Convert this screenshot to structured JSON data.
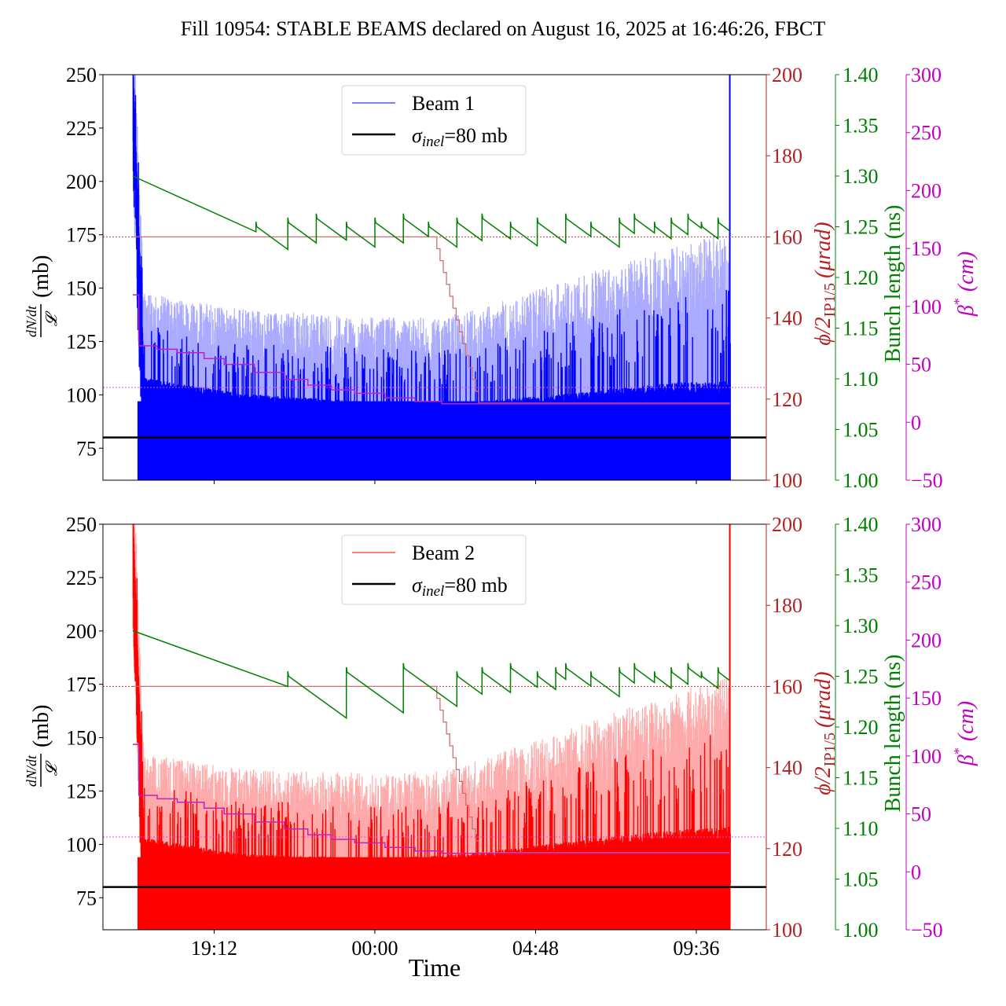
{
  "chart_data": {
    "title": "Fill 10954: STABLE BEAMS declared on August 16, 2025 at 16:46:26, FBCT",
    "type": "line",
    "x_unit": "hours relative to 00:00 (Aug 17)",
    "xlabel": "Time",
    "xticks": [
      {
        "value": -4.8,
        "label": "19:12"
      },
      {
        "value": 0,
        "label": "00:00"
      },
      {
        "value": 4.8,
        "label": "04:48"
      },
      {
        "value": 9.6,
        "label": "09:36"
      }
    ],
    "xlim": [
      -8.12,
      11.69
    ],
    "axes": {
      "left": {
        "label_num": "dN/dt",
        "label_den": "𝓛",
        "label_unit": "(mb)",
        "ylim": [
          60,
          250
        ],
        "ticks": [
          "75",
          "100",
          "125",
          "150",
          "175",
          "200",
          "225",
          "250"
        ]
      },
      "phi": {
        "label_main": "ϕ/2",
        "label_sub": "IP1/5",
        "label_unit": "(μrad)",
        "ylim": [
          100,
          200
        ],
        "ticks": [
          "100",
          "120",
          "140",
          "160",
          "180",
          "200"
        ],
        "color": "#b22222"
      },
      "bunch": {
        "label": "Bunch length (ns)",
        "ylim": [
          1.0,
          1.4
        ],
        "ticks": [
          "1.00",
          "1.05",
          "1.10",
          "1.15",
          "1.20",
          "1.25",
          "1.30",
          "1.35",
          "1.40"
        ],
        "color": "#008000"
      },
      "beta": {
        "label_main": "β",
        "label_sup": "*",
        "label_unit": "(cm)",
        "ylim": [
          -50,
          300
        ],
        "ticks": [
          "−50",
          "0",
          "50",
          "100",
          "150",
          "200",
          "250",
          "300"
        ],
        "color": "#c000c0"
      }
    },
    "panels": [
      {
        "name": "Beam 1",
        "legend": {
          "series_label": "Beam 1",
          "ref_label_sym": "σ",
          "ref_label_sub": "inel",
          "ref_label_rest": "=80 mb"
        },
        "color": "#0000ff",
        "light_color": "#aaaaff",
        "sigma_inel": 80,
        "beam_start": -7.23,
        "beam_end": 10.6,
        "spike_peak": 250,
        "mean_profile": [
          [
            -7.1,
            105
          ],
          [
            -4,
            97
          ],
          [
            0,
            93
          ],
          [
            3,
            93
          ],
          [
            6,
            96
          ],
          [
            9,
            100
          ],
          [
            10.6,
            100
          ]
        ],
        "bunch_length_start": 1.3,
        "bunch_length_refills": [
          -3.55,
          -2.6,
          -1.75,
          -0.85,
          0,
          0.85,
          1.6,
          2.45,
          3.2,
          4.05,
          4.85,
          5.7,
          6.45,
          7.3,
          7.75,
          8.35,
          8.85,
          9.35,
          9.75,
          10.25
        ],
        "phi_const": 160,
        "phi_step_start": 1.85,
        "phi_step_end": 3.2,
        "phi_final": 119,
        "beta_steps": [
          [
            -7.23,
            110
          ],
          [
            -7.05,
            66
          ],
          [
            -6.5,
            63
          ],
          [
            -5.9,
            60
          ],
          [
            -5.1,
            55
          ],
          [
            -4.5,
            50
          ],
          [
            -3.6,
            43
          ],
          [
            -2.7,
            37
          ],
          [
            -2.0,
            32
          ],
          [
            -1.3,
            28
          ],
          [
            -0.6,
            25
          ],
          [
            0.3,
            21
          ],
          [
            1.2,
            18
          ],
          [
            2.0,
            16
          ],
          [
            10.6,
            16
          ]
        ],
        "beta_ref": 30,
        "phi_ref": 160
      },
      {
        "name": "Beam 2",
        "legend": {
          "series_label": "Beam 2",
          "ref_label_sym": "σ",
          "ref_label_sub": "inel",
          "ref_label_rest": "=80 mb"
        },
        "color": "#ff0000",
        "light_color": "#ffaaaa",
        "sigma_inel": 80,
        "beam_start": -7.23,
        "beam_end": 10.6,
        "spike_peak": 250,
        "mean_profile": [
          [
            -7.1,
            100
          ],
          [
            -4,
            92
          ],
          [
            0,
            90
          ],
          [
            3,
            92
          ],
          [
            6,
            97
          ],
          [
            9,
            101
          ],
          [
            10.6,
            102
          ]
        ],
        "bunch_length_start": 1.295,
        "bunch_length_refills": [
          -2.6,
          -0.85,
          0.85,
          2.45,
          3.2,
          4.05,
          4.85,
          5.4,
          5.7,
          6.45,
          7.3,
          7.75,
          8.35,
          8.85,
          9.35,
          9.75,
          10.25
        ],
        "phi_const": 160,
        "phi_step_start": 1.85,
        "phi_step_end": 3.2,
        "phi_final": 119,
        "beta_steps": [
          [
            -7.23,
            110
          ],
          [
            -7.05,
            66
          ],
          [
            -6.5,
            63
          ],
          [
            -5.9,
            60
          ],
          [
            -5.1,
            55
          ],
          [
            -4.5,
            50
          ],
          [
            -3.6,
            43
          ],
          [
            -2.7,
            37
          ],
          [
            -2.0,
            32
          ],
          [
            -1.3,
            28
          ],
          [
            -0.6,
            25
          ],
          [
            0.3,
            21
          ],
          [
            1.2,
            18
          ],
          [
            2.0,
            16
          ],
          [
            10.6,
            16
          ]
        ],
        "beta_ref": 30,
        "phi_ref": 160
      }
    ],
    "legend_position": "upper center"
  }
}
